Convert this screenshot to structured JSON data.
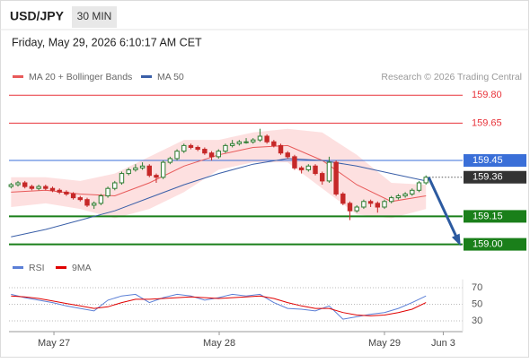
{
  "header": {
    "symbol": "USD/JPY",
    "timeframe": "30 MIN",
    "datetime": "Friday, May 29, 2026 6:10:17 AM CET"
  },
  "chart_data": [
    {
      "type": "candlestick",
      "source": "Research © 2026 Trading Central",
      "xlim": [
        -0.3,
        65.3
      ],
      "ylim": [
        158.95,
        159.83
      ],
      "up_color": "#2e7d32",
      "down_color": "#c62828",
      "open": [
        159.31,
        159.32,
        159.33,
        159.31,
        159.3,
        159.31,
        159.3,
        159.29,
        159.28,
        159.27,
        159.25,
        159.24,
        159.21,
        159.22,
        159.26,
        159.3,
        159.33,
        159.38,
        159.4,
        159.41,
        159.42,
        159.37,
        159.36,
        159.44,
        159.46,
        159.5,
        159.53,
        159.52,
        159.51,
        159.49,
        159.47,
        159.5,
        159.53,
        159.54,
        159.55,
        159.55,
        159.56,
        159.58,
        159.55,
        159.53,
        159.49,
        159.47,
        159.41,
        159.4,
        159.42,
        159.38,
        159.34,
        159.44,
        159.27,
        159.22,
        159.18,
        159.2,
        159.23,
        159.22,
        159.2,
        159.23,
        159.25,
        159.26,
        159.27,
        159.29,
        159.33
      ],
      "high": [
        159.33,
        159.34,
        159.34,
        159.32,
        159.32,
        159.32,
        159.31,
        159.3,
        159.29,
        159.28,
        159.26,
        159.25,
        159.23,
        159.27,
        159.31,
        159.34,
        159.39,
        159.41,
        159.43,
        159.44,
        159.43,
        159.38,
        159.45,
        159.47,
        159.51,
        159.54,
        159.54,
        159.53,
        159.52,
        159.5,
        159.51,
        159.54,
        159.56,
        159.56,
        159.57,
        159.57,
        159.62,
        159.59,
        159.56,
        159.54,
        159.5,
        159.48,
        159.42,
        159.43,
        159.43,
        159.39,
        159.47,
        159.45,
        159.28,
        159.23,
        159.21,
        159.24,
        159.24,
        159.23,
        159.24,
        159.26,
        159.27,
        159.28,
        159.3,
        159.34,
        159.37
      ],
      "low": [
        159.3,
        159.31,
        159.3,
        159.29,
        159.29,
        159.29,
        159.28,
        159.27,
        159.26,
        159.24,
        159.23,
        159.2,
        159.19,
        159.21,
        159.25,
        159.29,
        159.32,
        159.37,
        159.39,
        159.4,
        159.36,
        159.33,
        159.35,
        159.43,
        159.45,
        159.49,
        159.51,
        159.5,
        159.48,
        159.45,
        159.46,
        159.49,
        159.52,
        159.53,
        159.54,
        159.54,
        159.55,
        159.54,
        159.52,
        159.48,
        159.46,
        159.4,
        159.38,
        159.39,
        159.37,
        159.32,
        159.33,
        159.26,
        159.21,
        159.13,
        159.17,
        159.19,
        159.2,
        159.17,
        159.19,
        159.22,
        159.24,
        159.25,
        159.26,
        159.28,
        159.32
      ],
      "close": [
        159.32,
        159.33,
        159.31,
        159.3,
        159.31,
        159.3,
        159.29,
        159.28,
        159.27,
        159.25,
        159.24,
        159.21,
        159.22,
        159.26,
        159.3,
        159.33,
        159.38,
        159.4,
        159.41,
        159.42,
        159.37,
        159.36,
        159.44,
        159.46,
        159.5,
        159.53,
        159.52,
        159.51,
        159.49,
        159.47,
        159.5,
        159.53,
        159.54,
        159.55,
        159.55,
        159.56,
        159.58,
        159.55,
        159.53,
        159.49,
        159.47,
        159.41,
        159.4,
        159.42,
        159.38,
        159.34,
        159.44,
        159.27,
        159.22,
        159.18,
        159.2,
        159.23,
        159.22,
        159.2,
        159.23,
        159.25,
        159.26,
        159.27,
        159.29,
        159.33,
        159.36
      ],
      "series": [
        {
          "name": "MA 20 + Bollinger Bands",
          "color": "#e85a5a",
          "band_color": "#fde0e0",
          "x": [
            0,
            5,
            10,
            15,
            20,
            25,
            30,
            35,
            40,
            45,
            50,
            55,
            60
          ],
          "values": [
            159.28,
            159.29,
            159.27,
            159.26,
            159.33,
            159.42,
            159.48,
            159.52,
            159.53,
            159.45,
            159.32,
            159.23,
            159.26
          ],
          "upper": [
            159.36,
            159.36,
            159.34,
            159.38,
            159.47,
            159.56,
            159.56,
            159.6,
            159.62,
            159.6,
            159.48,
            159.33,
            159.32
          ],
          "lower": [
            159.2,
            159.22,
            159.19,
            159.14,
            159.19,
            159.28,
            159.4,
            159.44,
            159.44,
            159.3,
            159.16,
            159.14,
            159.19
          ]
        },
        {
          "name": "MA 50",
          "color": "#3a5fa8",
          "x": [
            0,
            5,
            10,
            15,
            20,
            25,
            30,
            35,
            40,
            45,
            50,
            55,
            60
          ],
          "values": [
            159.04,
            159.08,
            159.13,
            159.18,
            159.25,
            159.32,
            159.38,
            159.43,
            159.46,
            159.45,
            159.42,
            159.38,
            159.34
          ]
        }
      ],
      "levels": [
        {
          "value": 159.8,
          "label": "159.80",
          "color": "#e8333a",
          "style": "text"
        },
        {
          "value": 159.65,
          "label": "159.65",
          "color": "#e8333a",
          "style": "text"
        },
        {
          "value": 159.45,
          "label": "159.45",
          "color": "#3a6fd8",
          "style": "box"
        },
        {
          "value": 159.36,
          "label": "159.36",
          "color": "#333333",
          "style": "current"
        },
        {
          "value": 159.15,
          "label": "159.15",
          "color": "#1a7f1a",
          "style": "box"
        },
        {
          "value": 159.0,
          "label": "159.00",
          "color": "#1a7f1a",
          "style": "box"
        }
      ],
      "forecast_color": "#2c5aa0"
    },
    {
      "type": "line",
      "xlim": [
        -0.3,
        65.3
      ],
      "ylim": [
        17,
        80
      ],
      "yticks": [
        30,
        50,
        70
      ],
      "xticks": [
        {
          "value": 6.2,
          "label": "May 27"
        },
        {
          "value": 30.1,
          "label": "May 28"
        },
        {
          "value": 54,
          "label": "May 29"
        },
        {
          "value": 62.5,
          "label": "Jun 3"
        }
      ],
      "x": [
        0,
        2,
        4,
        6,
        8,
        10,
        12,
        14,
        16,
        18,
        20,
        22,
        24,
        26,
        28,
        30,
        32,
        34,
        36,
        38,
        40,
        42,
        44,
        46,
        48,
        50,
        52,
        54,
        56,
        58,
        60
      ],
      "series": [
        {
          "name": "RSI",
          "color": "#5b7fd6",
          "values": [
            62,
            58,
            55,
            52,
            48,
            45,
            42,
            55,
            60,
            62,
            52,
            58,
            62,
            60,
            55,
            58,
            62,
            60,
            62,
            52,
            45,
            44,
            42,
            48,
            32,
            35,
            38,
            40,
            45,
            52,
            60
          ]
        },
        {
          "name": "9MA",
          "color": "#e00000",
          "values": [
            60,
            59,
            57,
            54,
            51,
            48,
            45,
            47,
            52,
            56,
            56,
            57,
            58,
            59,
            58,
            57,
            58,
            59,
            60,
            57,
            52,
            48,
            45,
            45,
            40,
            37,
            36,
            37,
            40,
            44,
            52
          ]
        }
      ]
    }
  ]
}
